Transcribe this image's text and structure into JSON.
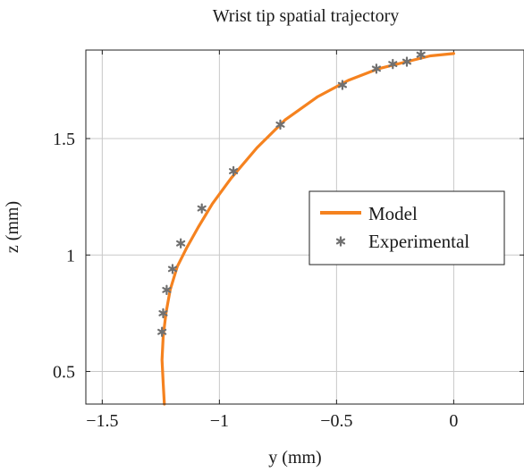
{
  "chart_data": {
    "type": "line",
    "title": "Wrist tip spatial trajectory",
    "xlabel": "y (mm)",
    "ylabel": "z (mm)",
    "xlim": [
      -1.57,
      0.3
    ],
    "ylim": [
      0.36,
      1.88
    ],
    "xticks": [
      -1.5,
      -1,
      -0.5,
      0
    ],
    "xtick_labels": [
      "−1.5",
      "−1",
      "−0.5",
      "0"
    ],
    "yticks": [
      0.5,
      1,
      1.5
    ],
    "ytick_labels": [
      "0.5",
      "1",
      "1.5"
    ],
    "grid": true,
    "legend_position": "right",
    "series": [
      {
        "name": "Model",
        "kind": "line",
        "color": "#f5821f",
        "x": [
          -1.235,
          -1.24,
          -1.245,
          -1.24,
          -1.228,
          -1.21,
          -1.18,
          -1.14,
          -1.09,
          -1.03,
          -0.95,
          -0.84,
          -0.72,
          -0.58,
          -0.45,
          -0.32,
          -0.2,
          -0.1,
          0.0
        ],
        "y": [
          0.36,
          0.45,
          0.55,
          0.65,
          0.75,
          0.85,
          0.95,
          1.03,
          1.12,
          1.22,
          1.33,
          1.46,
          1.58,
          1.68,
          1.75,
          1.8,
          1.83,
          1.855,
          1.865
        ]
      },
      {
        "name": "Experimental",
        "kind": "scatter",
        "marker": "asterisk",
        "color": "#707070",
        "x": [
          -1.245,
          -1.24,
          -1.225,
          -1.2,
          -1.165,
          -1.075,
          -0.94,
          -0.74,
          -0.475,
          -0.33,
          -0.26,
          -0.2,
          -0.14
        ],
        "y": [
          0.67,
          0.75,
          0.85,
          0.94,
          1.05,
          1.2,
          1.36,
          1.56,
          1.73,
          1.8,
          1.82,
          1.83,
          1.86
        ]
      }
    ]
  }
}
